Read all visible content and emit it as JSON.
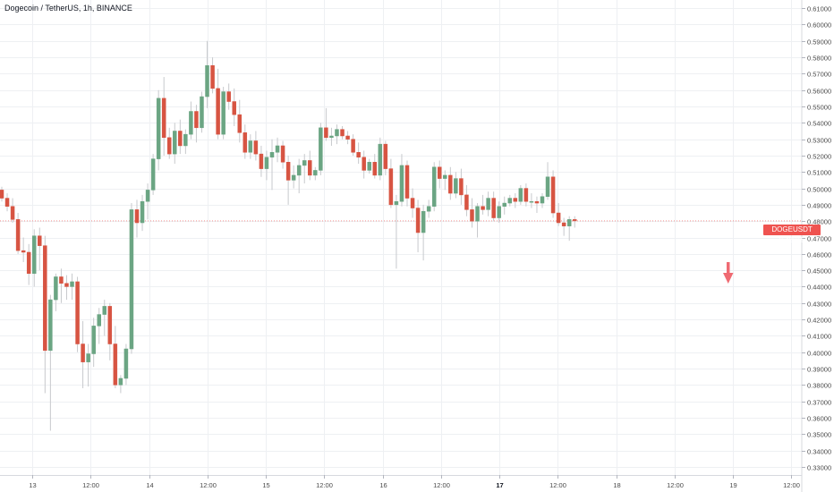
{
  "header": {
    "title": "Dogecoin / TetherUS, 1h, BINANCE"
  },
  "price_tag": {
    "label": "DOGEUSDT",
    "value": "0.48015"
  },
  "colors": {
    "up": "#6ba583",
    "down": "#d75442",
    "grid": "#eef0f3",
    "text": "#4a4a4a",
    "arrow": "#ef6a72"
  },
  "chart_data": {
    "type": "candlestick",
    "title": "Dogecoin / TetherUS, 1h, BINANCE",
    "ylim": [
      0.325,
      0.615
    ],
    "y_ticks": [
      "0.33000",
      "0.34000",
      "0.35000",
      "0.36000",
      "0.37000",
      "0.38000",
      "0.39000",
      "0.40000",
      "0.41000",
      "0.42000",
      "0.43000",
      "0.44000",
      "0.45000",
      "0.46000",
      "0.47000",
      "0.48000",
      "0.49000",
      "0.50000",
      "0.51000",
      "0.52000",
      "0.53000",
      "0.54000",
      "0.55000",
      "0.56000",
      "0.57000",
      "0.58000",
      "0.59000",
      "0.60000",
      "0.61000"
    ],
    "x_ticks": [
      "13",
      "12:00",
      "14",
      "12:00",
      "15",
      "12:00",
      "16",
      "12:00",
      "17",
      "12:00",
      "18",
      "12:00",
      "19",
      "12:00"
    ],
    "x_tick_bold": [
      "17"
    ],
    "last_price": 0.48015,
    "annotation": "down-arrow",
    "candles": [
      [
        0.499,
        0.501,
        0.492,
        0.494
      ],
      [
        0.494,
        0.497,
        0.486,
        0.489
      ],
      [
        0.489,
        0.494,
        0.479,
        0.481
      ],
      [
        0.481,
        0.485,
        0.46,
        0.462
      ],
      [
        0.462,
        0.47,
        0.455,
        0.461
      ],
      [
        0.461,
        0.466,
        0.441,
        0.448
      ],
      [
        0.448,
        0.475,
        0.44,
        0.471
      ],
      [
        0.471,
        0.476,
        0.45,
        0.465
      ],
      [
        0.465,
        0.471,
        0.375,
        0.401
      ],
      [
        0.401,
        0.435,
        0.352,
        0.432
      ],
      [
        0.432,
        0.448,
        0.425,
        0.446
      ],
      [
        0.446,
        0.451,
        0.43,
        0.442
      ],
      [
        0.442,
        0.447,
        0.432,
        0.44
      ],
      [
        0.44,
        0.448,
        0.432,
        0.443
      ],
      [
        0.443,
        0.446,
        0.4,
        0.405
      ],
      [
        0.405,
        0.419,
        0.378,
        0.394
      ],
      [
        0.394,
        0.405,
        0.379,
        0.399
      ],
      [
        0.399,
        0.421,
        0.391,
        0.416
      ],
      [
        0.416,
        0.427,
        0.405,
        0.423
      ],
      [
        0.423,
        0.432,
        0.41,
        0.428
      ],
      [
        0.428,
        0.43,
        0.395,
        0.405
      ],
      [
        0.405,
        0.416,
        0.378,
        0.38
      ],
      [
        0.38,
        0.386,
        0.375,
        0.384
      ],
      [
        0.384,
        0.405,
        0.38,
        0.402
      ],
      [
        0.402,
        0.491,
        0.399,
        0.487
      ],
      [
        0.487,
        0.493,
        0.47,
        0.479
      ],
      [
        0.479,
        0.496,
        0.474,
        0.492
      ],
      [
        0.492,
        0.503,
        0.481,
        0.499
      ],
      [
        0.499,
        0.521,
        0.496,
        0.518
      ],
      [
        0.518,
        0.56,
        0.511,
        0.555
      ],
      [
        0.555,
        0.568,
        0.52,
        0.531
      ],
      [
        0.531,
        0.537,
        0.518,
        0.521
      ],
      [
        0.521,
        0.54,
        0.515,
        0.535
      ],
      [
        0.535,
        0.542,
        0.521,
        0.526
      ],
      [
        0.526,
        0.536,
        0.521,
        0.533
      ],
      [
        0.533,
        0.553,
        0.53,
        0.547
      ],
      [
        0.547,
        0.551,
        0.528,
        0.537
      ],
      [
        0.537,
        0.559,
        0.534,
        0.556
      ],
      [
        0.556,
        0.59,
        0.549,
        0.575
      ],
      [
        0.575,
        0.58,
        0.558,
        0.561
      ],
      [
        0.561,
        0.573,
        0.53,
        0.533
      ],
      [
        0.533,
        0.562,
        0.53,
        0.559
      ],
      [
        0.559,
        0.564,
        0.548,
        0.553
      ],
      [
        0.553,
        0.561,
        0.538,
        0.545
      ],
      [
        0.545,
        0.554,
        0.528,
        0.534
      ],
      [
        0.534,
        0.539,
        0.518,
        0.522
      ],
      [
        0.522,
        0.533,
        0.518,
        0.529
      ],
      [
        0.529,
        0.535,
        0.517,
        0.521
      ],
      [
        0.521,
        0.526,
        0.507,
        0.512
      ],
      [
        0.512,
        0.523,
        0.505,
        0.519
      ],
      [
        0.519,
        0.53,
        0.499,
        0.522
      ],
      [
        0.522,
        0.531,
        0.516,
        0.526
      ],
      [
        0.526,
        0.529,
        0.512,
        0.516
      ],
      [
        0.516,
        0.52,
        0.49,
        0.505
      ],
      [
        0.505,
        0.514,
        0.5,
        0.508
      ],
      [
        0.508,
        0.518,
        0.497,
        0.514
      ],
      [
        0.514,
        0.521,
        0.503,
        0.517
      ],
      [
        0.517,
        0.523,
        0.505,
        0.508
      ],
      [
        0.508,
        0.513,
        0.505,
        0.511
      ],
      [
        0.511,
        0.54,
        0.508,
        0.537
      ],
      [
        0.537,
        0.549,
        0.529,
        0.531
      ],
      [
        0.531,
        0.537,
        0.526,
        0.532
      ],
      [
        0.532,
        0.539,
        0.527,
        0.536
      ],
      [
        0.536,
        0.538,
        0.53,
        0.532
      ],
      [
        0.532,
        0.535,
        0.527,
        0.53
      ],
      [
        0.53,
        0.533,
        0.52,
        0.522
      ],
      [
        0.522,
        0.528,
        0.515,
        0.519
      ],
      [
        0.519,
        0.523,
        0.506,
        0.511
      ],
      [
        0.511,
        0.518,
        0.509,
        0.516
      ],
      [
        0.516,
        0.521,
        0.506,
        0.508
      ],
      [
        0.508,
        0.531,
        0.505,
        0.527
      ],
      [
        0.527,
        0.529,
        0.508,
        0.512
      ],
      [
        0.512,
        0.518,
        0.488,
        0.49
      ],
      [
        0.49,
        0.496,
        0.451,
        0.492
      ],
      [
        0.492,
        0.521,
        0.489,
        0.514
      ],
      [
        0.514,
        0.517,
        0.489,
        0.494
      ],
      [
        0.494,
        0.5,
        0.482,
        0.488
      ],
      [
        0.488,
        0.493,
        0.461,
        0.473
      ],
      [
        0.473,
        0.49,
        0.456,
        0.486
      ],
      [
        0.486,
        0.493,
        0.482,
        0.489
      ],
      [
        0.489,
        0.516,
        0.486,
        0.513
      ],
      [
        0.513,
        0.517,
        0.5,
        0.506
      ],
      [
        0.506,
        0.511,
        0.499,
        0.508
      ],
      [
        0.508,
        0.513,
        0.493,
        0.497
      ],
      [
        0.497,
        0.51,
        0.494,
        0.506
      ],
      [
        0.506,
        0.512,
        0.49,
        0.496
      ],
      [
        0.496,
        0.502,
        0.483,
        0.487
      ],
      [
        0.487,
        0.494,
        0.476,
        0.48
      ],
      [
        0.48,
        0.491,
        0.47,
        0.489
      ],
      [
        0.489,
        0.496,
        0.484,
        0.487
      ],
      [
        0.487,
        0.498,
        0.483,
        0.494
      ],
      [
        0.494,
        0.498,
        0.48,
        0.482
      ],
      [
        0.482,
        0.492,
        0.479,
        0.489
      ],
      [
        0.489,
        0.495,
        0.484,
        0.491
      ],
      [
        0.491,
        0.496,
        0.489,
        0.494
      ],
      [
        0.494,
        0.497,
        0.488,
        0.492
      ],
      [
        0.492,
        0.502,
        0.49,
        0.5
      ],
      [
        0.5,
        0.503,
        0.489,
        0.492
      ],
      [
        0.492,
        0.497,
        0.488,
        0.492
      ],
      [
        0.492,
        0.495,
        0.485,
        0.491
      ],
      [
        0.491,
        0.497,
        0.488,
        0.495
      ],
      [
        0.495,
        0.516,
        0.493,
        0.507
      ],
      [
        0.507,
        0.511,
        0.482,
        0.485
      ],
      [
        0.485,
        0.491,
        0.477,
        0.479
      ],
      [
        0.479,
        0.482,
        0.471,
        0.477
      ],
      [
        0.477,
        0.483,
        0.468,
        0.481
      ],
      [
        0.481,
        0.483,
        0.476,
        0.48015
      ]
    ]
  }
}
